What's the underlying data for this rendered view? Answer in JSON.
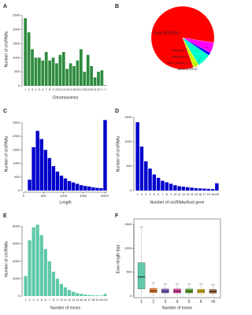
{
  "chart_data": [
    {
      "panel": "A",
      "type": "bar",
      "color": "#2e8b3e",
      "xlabel": "Chromosomes",
      "ylabel": "Number of circRNAs",
      "categories": [
        "1",
        "2",
        "3",
        "4",
        "5",
        "6",
        "7",
        "8",
        "9",
        "10",
        "11",
        "12",
        "13",
        "14",
        "15",
        "16",
        "17",
        "18",
        "19",
        "20",
        "21",
        "22",
        "X",
        "Y"
      ],
      "values": [
        2400,
        1900,
        1300,
        1000,
        1000,
        900,
        1200,
        900,
        1000,
        800,
        1100,
        1200,
        600,
        800,
        700,
        900,
        1300,
        500,
        1100,
        700,
        300,
        500,
        550,
        20
      ],
      "ylim": [
        0,
        2600
      ],
      "yticks": [
        0,
        500,
        1000,
        1500,
        2000,
        2500
      ]
    },
    {
      "panel": "B",
      "type": "pie",
      "categories": [
        "Exon (83.08%)",
        "Intergenic (5.43%)",
        "Antisense (1.41%)",
        "Intron_sense (7.23%)",
        "Intron (2.83%)"
      ],
      "values": [
        83.08,
        5.43,
        1.41,
        7.23,
        2.83
      ],
      "colors": [
        "#ff0000",
        "#ff00ff",
        "#0000ff",
        "#00ffcc",
        "#ccff00"
      ]
    },
    {
      "panel": "C",
      "type": "histogram",
      "color": "#0000cc",
      "xlabel": "Length",
      "ylabel": "Number of circRNAs",
      "bins": [
        0,
        100,
        200,
        300,
        400,
        500,
        600,
        700,
        800,
        900,
        1000,
        1100,
        1200,
        1300,
        1400,
        1500,
        1600,
        1700,
        1800,
        1900,
        2000,
        2100
      ],
      "counts": [
        0,
        400,
        1600,
        2200,
        1900,
        1500,
        1200,
        900,
        700,
        550,
        450,
        350,
        300,
        250,
        200,
        170,
        150,
        120,
        100,
        90,
        2600
      ],
      "xlim": [
        0,
        2100
      ],
      "xticks": [
        0,
        500,
        1000,
        1500,
        {
          "value": 2050,
          "label": "2000+"
        }
      ],
      "ylim": [
        0,
        2700
      ],
      "yticks": [
        0,
        500,
        1000,
        1500,
        2000,
        2500
      ]
    },
    {
      "panel": "D",
      "type": "bar",
      "color": "#0000cc",
      "xlabel": "Number of circRNAs/host gene",
      "ylabel": "Number of circRNAs",
      "categories": [
        "1",
        "2",
        "3",
        "4",
        "5",
        "6",
        "7",
        "8",
        "9",
        "10",
        "11",
        "12",
        "13",
        "14",
        "15",
        "16",
        "17",
        "18",
        "19",
        "≥20"
      ],
      "values": [
        1400,
        900,
        600,
        450,
        330,
        260,
        200,
        170,
        140,
        110,
        90,
        80,
        70,
        60,
        50,
        45,
        40,
        35,
        30,
        150
      ],
      "ylim": [
        0,
        1500
      ],
      "yticks": [
        0,
        500,
        1000,
        1500
      ]
    },
    {
      "panel": "E",
      "type": "bar",
      "color": "#5fc8a8",
      "xlabel": "Number of exons",
      "ylabel": "Number of circRNAs",
      "categories": [
        "1",
        "2",
        "3",
        "4",
        "5",
        "6",
        "7",
        "8",
        "9",
        "10",
        "11",
        "12",
        "13",
        "14",
        "15",
        "16",
        "17",
        "18",
        "19",
        "20",
        ">20"
      ],
      "values": [
        2300,
        6400,
        7900,
        8200,
        7000,
        5400,
        4000,
        2800,
        2000,
        1400,
        1000,
        700,
        500,
        350,
        250,
        180,
        130,
        100,
        80,
        60,
        250
      ],
      "ylim": [
        0,
        8500
      ],
      "yticks": [
        0,
        2000,
        4000,
        6000,
        8000
      ]
    },
    {
      "panel": "F",
      "type": "box",
      "xlabel": "Number of exons",
      "ylabel": "Exon length (bp)",
      "boxes": [
        {
          "category": "1",
          "low": 0,
          "q1": 150,
          "median": 400,
          "q3": 700,
          "high": 1450,
          "color": "#5fc8a8"
        },
        {
          "category": "2",
          "low": 0,
          "q1": 70,
          "median": 110,
          "q3": 160,
          "high": 280,
          "color": "#f08030"
        },
        {
          "category": "3",
          "low": 0,
          "q1": 65,
          "median": 100,
          "q3": 150,
          "high": 260,
          "color": "#8060c0"
        },
        {
          "category": "4",
          "low": 0,
          "q1": 65,
          "median": 100,
          "q3": 150,
          "high": 260,
          "color": "#e040a0"
        },
        {
          "category": "5",
          "low": 0,
          "q1": 65,
          "median": 100,
          "q3": 150,
          "high": 260,
          "color": "#60b030"
        },
        {
          "category": "6",
          "low": 0,
          "q1": 65,
          "median": 100,
          "q3": 145,
          "high": 250,
          "color": "#e0c020"
        },
        {
          "category": ">6",
          "low": 0,
          "q1": 60,
          "median": 95,
          "q3": 140,
          "high": 240,
          "color": "#a07040"
        }
      ],
      "ylim": [
        0,
        1550
      ],
      "yticks": [
        0,
        500,
        1000,
        1500
      ]
    }
  ]
}
